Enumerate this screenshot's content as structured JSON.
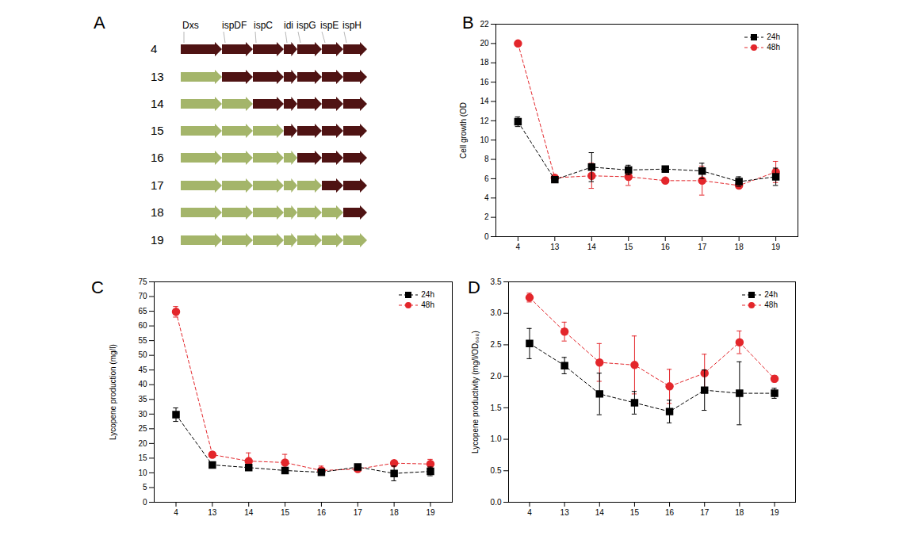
{
  "diagram": {
    "panel": "A",
    "genes": [
      "Dxs",
      "ispDF",
      "ispC",
      "idi",
      "ispG",
      "ispE",
      "ispH"
    ],
    "rows": [
      {
        "label": "4",
        "colors": [
          "#4f1313",
          "#4f1313",
          "#4f1313",
          "#4f1313",
          "#4f1313",
          "#4f1313",
          "#4f1313"
        ]
      },
      {
        "label": "13",
        "colors": [
          "#a4b56a",
          "#4f1313",
          "#4f1313",
          "#4f1313",
          "#4f1313",
          "#4f1313",
          "#4f1313"
        ]
      },
      {
        "label": "14",
        "colors": [
          "#a4b56a",
          "#a4b56a",
          "#4f1313",
          "#4f1313",
          "#4f1313",
          "#4f1313",
          "#4f1313"
        ]
      },
      {
        "label": "15",
        "colors": [
          "#a4b56a",
          "#a4b56a",
          "#a4b56a",
          "#4f1313",
          "#4f1313",
          "#4f1313",
          "#4f1313"
        ]
      },
      {
        "label": "16",
        "colors": [
          "#a4b56a",
          "#a4b56a",
          "#a4b56a",
          "#a4b56a",
          "#4f1313",
          "#4f1313",
          "#4f1313"
        ]
      },
      {
        "label": "17",
        "colors": [
          "#a4b56a",
          "#a4b56a",
          "#a4b56a",
          "#a4b56a",
          "#a4b56a",
          "#4f1313",
          "#4f1313"
        ]
      },
      {
        "label": "18",
        "colors": [
          "#a4b56a",
          "#a4b56a",
          "#a4b56a",
          "#a4b56a",
          "#a4b56a",
          "#a4b56a",
          "#4f1313"
        ]
      },
      {
        "label": "19",
        "colors": [
          "#a4b56a",
          "#a4b56a",
          "#a4b56a",
          "#a4b56a",
          "#a4b56a",
          "#a4b56a",
          "#a4b56a"
        ]
      }
    ]
  },
  "chart_data": [
    {
      "panel": "B",
      "type": "line",
      "y_label": "Cell growth (OD",
      "categories": [
        "4",
        "13",
        "14",
        "15",
        "16",
        "17",
        "18",
        "19"
      ],
      "ylim": [
        0,
        22
      ],
      "yticks": [
        0,
        2,
        4,
        6,
        8,
        10,
        12,
        14,
        16,
        18,
        20,
        22
      ],
      "grid": false,
      "legend": "upper right",
      "series": [
        {
          "name": "24h",
          "color": "#000000",
          "marker": "square",
          "line_style": "dashed",
          "values": [
            11.9,
            5.9,
            7.2,
            6.9,
            7.0,
            6.8,
            5.7,
            6.2
          ],
          "errors": [
            0.5,
            0.2,
            1.5,
            0.5,
            0.3,
            0.8,
            0.5,
            0.9
          ]
        },
        {
          "name": "48h",
          "color": "#e3262b",
          "marker": "circle",
          "line_style": "dashed",
          "values": [
            20.0,
            6.1,
            6.3,
            6.2,
            5.8,
            5.8,
            5.3,
            6.7
          ],
          "errors": [
            0.1,
            0.1,
            1.3,
            0.9,
            0.2,
            1.5,
            0.3,
            1.1
          ]
        }
      ]
    },
    {
      "panel": "C",
      "type": "line",
      "y_label": "Lycopene production (mg/l)",
      "categories": [
        "4",
        "13",
        "14",
        "15",
        "16",
        "17",
        "18",
        "19"
      ],
      "ylim": [
        0,
        75
      ],
      "yticks": [
        0,
        5,
        10,
        15,
        20,
        25,
        30,
        35,
        40,
        45,
        50,
        55,
        60,
        65,
        70,
        75
      ],
      "grid": false,
      "legend": "upper right",
      "series": [
        {
          "name": "24h",
          "color": "#000000",
          "marker": "square",
          "line_style": "dashed",
          "values": [
            29.8,
            12.7,
            11.8,
            10.8,
            10.2,
            12.0,
            9.8,
            10.5
          ],
          "errors": [
            2.3,
            0.5,
            0.7,
            0.5,
            0.8,
            0.8,
            2.5,
            1.5
          ]
        },
        {
          "name": "48h",
          "color": "#e3262b",
          "marker": "circle",
          "line_style": "dashed",
          "values": [
            64.8,
            16.2,
            14.0,
            13.5,
            10.8,
            11.3,
            13.3,
            13.0
          ],
          "errors": [
            1.8,
            0.5,
            2.8,
            2.8,
            1.5,
            0.8,
            0.5,
            1.6
          ]
        }
      ]
    },
    {
      "panel": "D",
      "type": "line",
      "y_label": "Lycopene productivity (mg/l/OD₆₀₀)",
      "categories": [
        "4",
        "13",
        "14",
        "15",
        "16",
        "17",
        "18",
        "19"
      ],
      "ylim": [
        0,
        3.5
      ],
      "yticks": [
        {
          "value": 0,
          "label": "0.0"
        },
        0.5,
        {
          "value": 1,
          "label": "1.0"
        },
        1.5,
        {
          "value": 2,
          "label": "2.0"
        },
        2.5,
        {
          "value": 3,
          "label": "3.0"
        },
        3.5
      ],
      "grid": false,
      "legend": "upper right",
      "series": [
        {
          "name": "24h",
          "color": "#000000",
          "marker": "square",
          "line_style": "dashed",
          "values": [
            2.52,
            2.17,
            1.72,
            1.58,
            1.44,
            1.78,
            1.73,
            1.73
          ],
          "errors": [
            0.24,
            0.13,
            0.33,
            0.18,
            0.18,
            0.32,
            0.5,
            0.08
          ]
        },
        {
          "name": "48h",
          "color": "#e3262b",
          "marker": "circle",
          "line_style": "dashed",
          "values": [
            3.25,
            2.71,
            2.22,
            2.18,
            1.84,
            2.05,
            2.54,
            1.96
          ],
          "errors": [
            0.07,
            0.15,
            0.3,
            0.46,
            0.27,
            0.3,
            0.18,
            0.05
          ]
        }
      ]
    }
  ]
}
